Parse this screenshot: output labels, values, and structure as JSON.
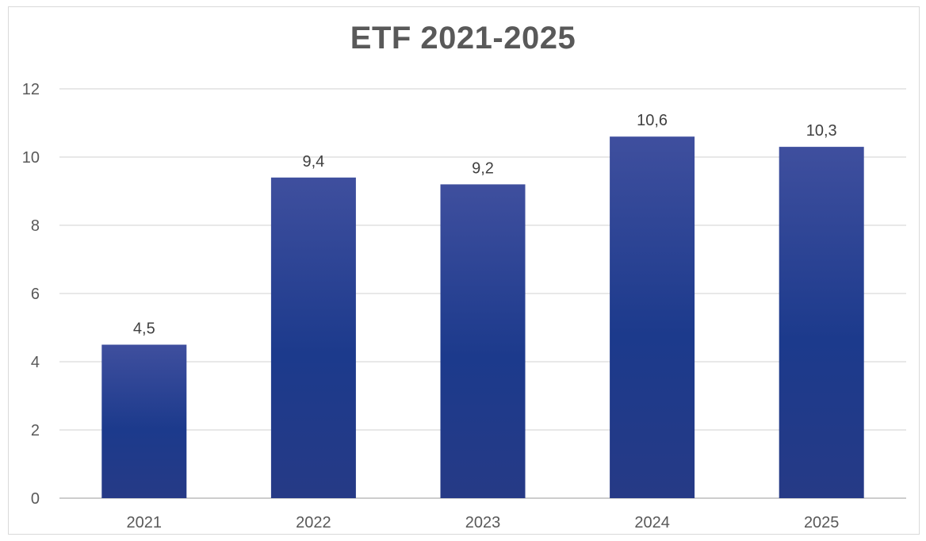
{
  "chart_data": {
    "type": "bar",
    "title": "ETF 2021-2025",
    "xlabel": "",
    "ylabel": "",
    "categories": [
      "2021",
      "2022",
      "2023",
      "2024",
      "2025"
    ],
    "values": [
      4.5,
      9.4,
      9.2,
      10.6,
      10.3
    ],
    "data_labels": [
      "4,5",
      "9,4",
      "9,2",
      "10,6",
      "10,3"
    ],
    "ylim": [
      0,
      12
    ],
    "yticks": [
      0,
      2,
      4,
      6,
      8,
      10,
      12
    ],
    "grid": true,
    "legend": "none",
    "colors": {
      "bar_top": "#3f4f9e",
      "bar_mid": "#1c3a8c",
      "bar_bottom": "#263a86",
      "grid": "#d9d9d9"
    }
  }
}
